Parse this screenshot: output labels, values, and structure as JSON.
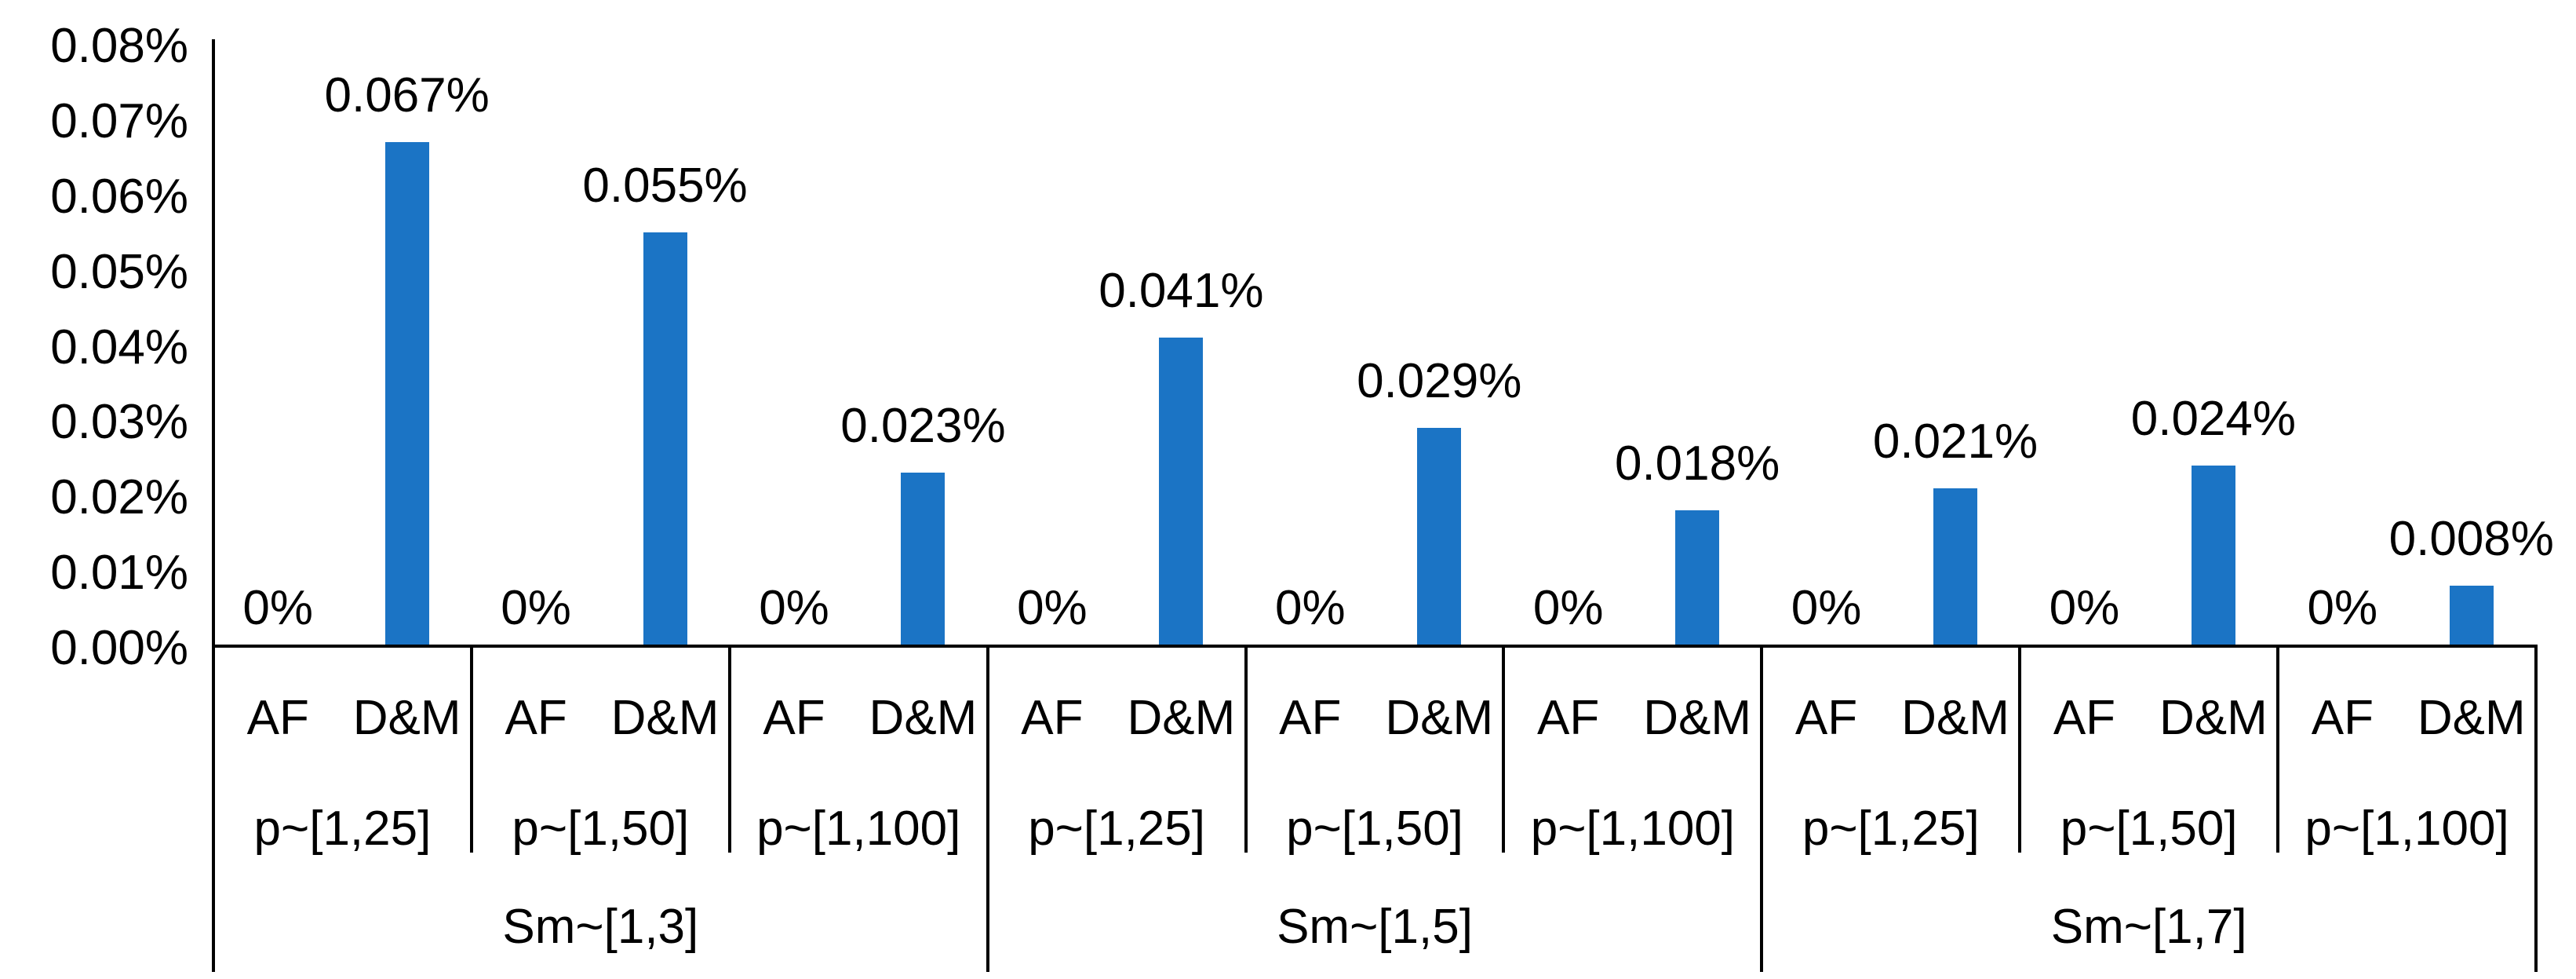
{
  "chart_data": {
    "type": "bar",
    "title": "",
    "xlabel": "",
    "ylabel": "",
    "ylim": [
      0,
      0.08
    ],
    "unit": "percent",
    "grid": false,
    "legend_position": "none",
    "bar_color": "#1B74C5",
    "axis_color": "#000000",
    "text_color": "#000000",
    "ytick_labels": [
      "0.00%",
      "0.01%",
      "0.02%",
      "0.03%",
      "0.04%",
      "0.05%",
      "0.06%",
      "0.07%",
      "0.08%"
    ],
    "series_labels": [
      "AF",
      "D&M"
    ],
    "groups": [
      {
        "label": "Sm~[1,3]",
        "subgroups": [
          {
            "label": "p~[1,25]",
            "af_value": 0,
            "af_label": "0%",
            "dm_value": 0.067,
            "dm_label": "0.067%"
          },
          {
            "label": "p~[1,50]",
            "af_value": 0,
            "af_label": "0%",
            "dm_value": 0.055,
            "dm_label": "0.055%"
          },
          {
            "label": "p~[1,100]",
            "af_value": 0,
            "af_label": "0%",
            "dm_value": 0.023,
            "dm_label": "0.023%"
          }
        ]
      },
      {
        "label": "Sm~[1,5]",
        "subgroups": [
          {
            "label": "p~[1,25]",
            "af_value": 0,
            "af_label": "0%",
            "dm_value": 0.041,
            "dm_label": "0.041%"
          },
          {
            "label": "p~[1,50]",
            "af_value": 0,
            "af_label": "0%",
            "dm_value": 0.029,
            "dm_label": "0.029%"
          },
          {
            "label": "p~[1,100]",
            "af_value": 0,
            "af_label": "0%",
            "dm_value": 0.018,
            "dm_label": "0.018%"
          }
        ]
      },
      {
        "label": "Sm~[1,7]",
        "subgroups": [
          {
            "label": "p~[1,25]",
            "af_value": 0,
            "af_label": "0%",
            "dm_value": 0.021,
            "dm_label": "0.021%"
          },
          {
            "label": "p~[1,50]",
            "af_value": 0,
            "af_label": "0%",
            "dm_value": 0.024,
            "dm_label": "0.024%"
          },
          {
            "label": "p~[1,100]",
            "af_value": 0,
            "af_label": "0%",
            "dm_value": 0.008,
            "dm_label": "0.008%"
          }
        ]
      }
    ]
  }
}
